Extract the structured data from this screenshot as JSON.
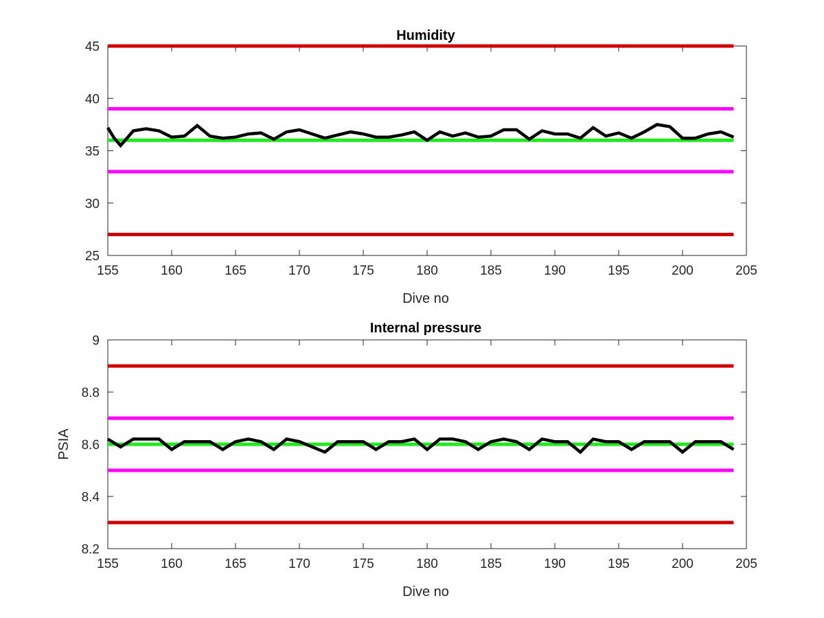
{
  "colors": {
    "red_limit": "#d10000",
    "magenta_limit": "#ff00ff",
    "green_nominal": "#1fe81f",
    "measured": "#000000",
    "axes": "#262626"
  },
  "chart_data": [
    {
      "type": "line",
      "title": "Humidity",
      "xlabel": "Dive no",
      "ylabel": "",
      "xlim": [
        155,
        205
      ],
      "ylim": [
        25,
        45
      ],
      "xticks": [
        "155",
        "160",
        "165",
        "170",
        "175",
        "180",
        "185",
        "190",
        "195",
        "200",
        "205"
      ],
      "yticks": [
        "25",
        "30",
        "35",
        "40",
        "45"
      ],
      "grid": false,
      "hlines": [
        {
          "y": 45,
          "color": "#d10000",
          "x": [
            155,
            204
          ]
        },
        {
          "y": 39,
          "color": "#ff00ff",
          "x": [
            155,
            204
          ]
        },
        {
          "y": 36,
          "color": "#1fe81f",
          "x": [
            155,
            204
          ]
        },
        {
          "y": 33,
          "color": "#ff00ff",
          "x": [
            155,
            204
          ]
        },
        {
          "y": 27,
          "color": "#d10000",
          "x": [
            155,
            204
          ]
        }
      ],
      "series": [
        {
          "color": "#000000",
          "x": [
            155,
            155.5,
            156,
            156.5,
            157,
            158,
            159,
            160,
            161,
            162,
            163,
            164,
            165,
            166,
            167,
            168,
            169,
            170,
            171,
            172,
            173,
            174,
            175,
            176,
            177,
            178,
            179,
            180,
            181,
            182,
            183,
            184,
            185,
            186,
            187,
            188,
            189,
            190,
            191,
            192,
            193,
            194,
            195,
            196,
            197,
            198,
            199,
            200,
            201,
            202,
            203,
            204
          ],
          "values": [
            37.2,
            36.2,
            35.5,
            36.2,
            36.9,
            37.1,
            36.9,
            36.3,
            36.4,
            37.4,
            36.4,
            36.2,
            36.3,
            36.6,
            36.7,
            36.1,
            36.8,
            37.0,
            36.6,
            36.2,
            36.5,
            36.8,
            36.6,
            36.3,
            36.3,
            36.5,
            36.8,
            36.0,
            36.8,
            36.4,
            36.7,
            36.3,
            36.4,
            37.0,
            37.0,
            36.1,
            36.9,
            36.6,
            36.6,
            36.2,
            37.2,
            36.4,
            36.7,
            36.2,
            36.8,
            37.5,
            37.3,
            36.2,
            36.2,
            36.6,
            36.8,
            36.3
          ]
        }
      ]
    },
    {
      "type": "line",
      "title": "Internal pressure",
      "xlabel": "Dive no",
      "ylabel": "PSIA",
      "xlim": [
        155,
        205
      ],
      "ylim": [
        8.2,
        9.0
      ],
      "xticks": [
        "155",
        "160",
        "165",
        "170",
        "175",
        "180",
        "185",
        "190",
        "195",
        "200",
        "205"
      ],
      "yticks": [
        "8.2",
        "8.4",
        "8.6",
        "8.8",
        "9"
      ],
      "grid": false,
      "hlines": [
        {
          "y": 8.9,
          "color": "#d10000",
          "x": [
            155,
            204
          ]
        },
        {
          "y": 8.7,
          "color": "#ff00ff",
          "x": [
            155,
            204
          ]
        },
        {
          "y": 8.6,
          "color": "#1fe81f",
          "x": [
            155,
            204
          ]
        },
        {
          "y": 8.5,
          "color": "#ff00ff",
          "x": [
            155,
            204
          ]
        },
        {
          "y": 8.3,
          "color": "#d10000",
          "x": [
            155,
            204
          ]
        }
      ],
      "series": [
        {
          "color": "#000000",
          "x": [
            155,
            156,
            157,
            158,
            159,
            160,
            161,
            162,
            163,
            164,
            165,
            166,
            167,
            168,
            169,
            170,
            171,
            172,
            173,
            174,
            175,
            176,
            177,
            178,
            179,
            180,
            181,
            182,
            183,
            184,
            185,
            186,
            187,
            188,
            189,
            190,
            191,
            192,
            193,
            194,
            195,
            196,
            197,
            198,
            199,
            200,
            201,
            202,
            203,
            204
          ],
          "values": [
            8.62,
            8.59,
            8.62,
            8.62,
            8.62,
            8.58,
            8.61,
            8.61,
            8.61,
            8.58,
            8.61,
            8.62,
            8.61,
            8.58,
            8.62,
            8.61,
            8.59,
            8.57,
            8.61,
            8.61,
            8.61,
            8.58,
            8.61,
            8.61,
            8.62,
            8.58,
            8.62,
            8.62,
            8.61,
            8.58,
            8.61,
            8.62,
            8.61,
            8.58,
            8.62,
            8.61,
            8.61,
            8.57,
            8.62,
            8.61,
            8.61,
            8.58,
            8.61,
            8.61,
            8.61,
            8.57,
            8.61,
            8.61,
            8.61,
            8.58
          ]
        }
      ]
    }
  ]
}
